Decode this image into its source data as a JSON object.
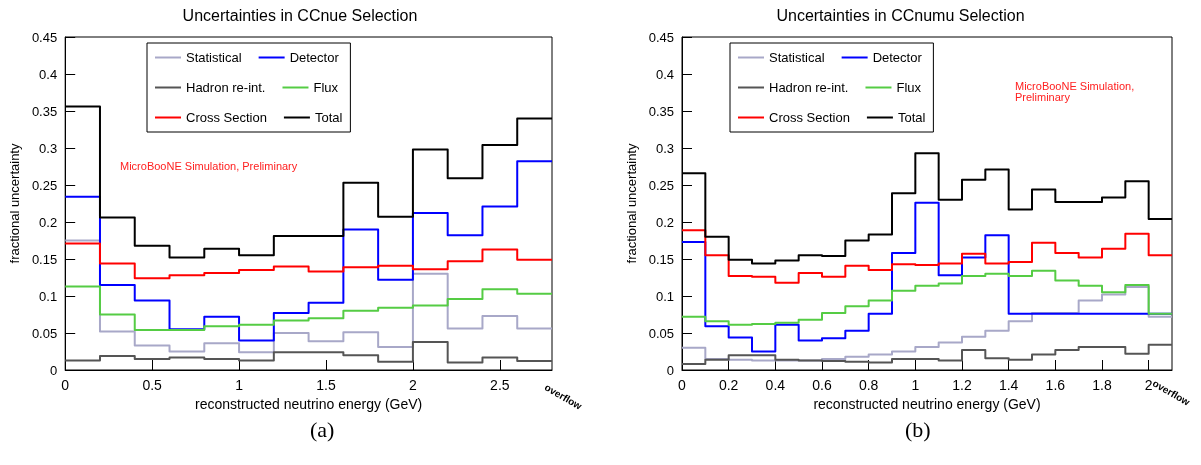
{
  "chart_data": [
    {
      "type": "histogram",
      "title": "Uncertainties in CCnue Selection",
      "xlabel": "reconstructed neutrino energy (GeV)",
      "ylabel": "fractional uncertainty",
      "annotations": [
        "MicroBooNE Simulation, Preliminary",
        "overflow",
        "(a)"
      ],
      "bins": [
        0,
        0.2,
        0.4,
        0.6,
        0.8,
        1.0,
        1.2,
        1.4,
        1.6,
        1.8,
        2.0,
        2.2,
        2.4,
        2.6,
        2.8
      ],
      "series": [
        {
          "name": "Statistical",
          "color": "#a8a8c8",
          "values": [
            0.175,
            0.052,
            0.033,
            0.025,
            0.036,
            0.024,
            0.05,
            0.039,
            0.051,
            0.031,
            0.13,
            0.056,
            0.073,
            0.056
          ]
        },
        {
          "name": "Detector",
          "color": "#0000ff",
          "values": [
            0.234,
            0.115,
            0.094,
            0.055,
            0.072,
            0.04,
            0.077,
            0.091,
            0.19,
            0.122,
            0.212,
            0.182,
            0.221,
            0.282
          ]
        },
        {
          "name": "Hadron re-int.",
          "color": "#555555",
          "values": [
            0.013,
            0.019,
            0.015,
            0.017,
            0.015,
            0.013,
            0.024,
            0.024,
            0.02,
            0.011,
            0.038,
            0.01,
            0.017,
            0.012
          ]
        },
        {
          "name": "Flux",
          "color": "#55cc44",
          "values": [
            0.113,
            0.075,
            0.054,
            0.054,
            0.059,
            0.061,
            0.067,
            0.07,
            0.08,
            0.084,
            0.087,
            0.096,
            0.109,
            0.103
          ]
        },
        {
          "name": "Cross Section",
          "color": "#ff0000",
          "values": [
            0.171,
            0.144,
            0.124,
            0.128,
            0.131,
            0.135,
            0.14,
            0.133,
            0.139,
            0.141,
            0.136,
            0.147,
            0.163,
            0.149
          ]
        },
        {
          "name": "Total",
          "color": "#000000",
          "values": [
            0.356,
            0.206,
            0.168,
            0.152,
            0.164,
            0.155,
            0.181,
            0.181,
            0.253,
            0.207,
            0.298,
            0.259,
            0.304,
            0.34
          ]
        }
      ],
      "xlim": [
        0,
        2.8
      ],
      "xticks": [
        0,
        0.5,
        1,
        1.5,
        2,
        2.5
      ],
      "ylim": [
        0,
        0.45
      ],
      "yticks": [
        0,
        0.05,
        0.1,
        0.15,
        0.2,
        0.25,
        0.3,
        0.35,
        0.4,
        0.45
      ],
      "grid": false,
      "legend": "top"
    },
    {
      "type": "histogram",
      "title": "Uncertainties in CCnumu Selection",
      "xlabel": "reconstructed neutrino energy (GeV)",
      "ylabel": "fractional uncertainty",
      "annotations": [
        "MicroBooNE Simulation, Preliminary",
        "overflow",
        "(b)"
      ],
      "bins": [
        0,
        0.1,
        0.2,
        0.3,
        0.4,
        0.5,
        0.6,
        0.7,
        0.8,
        0.9,
        1.0,
        1.1,
        1.2,
        1.3,
        1.4,
        1.5,
        1.6,
        1.7,
        1.8,
        1.9,
        2.0,
        2.1
      ],
      "series": [
        {
          "name": "Statistical",
          "color": "#a8a8c8",
          "values": [
            0.03,
            0.015,
            0.014,
            0.013,
            0.013,
            0.013,
            0.015,
            0.018,
            0.021,
            0.025,
            0.031,
            0.037,
            0.045,
            0.053,
            0.066,
            0.077,
            0.077,
            0.094,
            0.102,
            0.112,
            0.072
          ]
        },
        {
          "name": "Detector",
          "color": "#0000ff",
          "values": [
            0.173,
            0.059,
            0.044,
            0.025,
            0.061,
            0.04,
            0.043,
            0.053,
            0.076,
            0.158,
            0.226,
            0.128,
            0.152,
            0.182,
            0.076,
            0.076,
            0.076,
            0.076,
            0.076,
            0.076,
            0.076
          ]
        },
        {
          "name": "Hadron re-int.",
          "color": "#555555",
          "values": [
            0.008,
            0.014,
            0.02,
            0.02,
            0.014,
            0.013,
            0.012,
            0.011,
            0.01,
            0.015,
            0.015,
            0.013,
            0.027,
            0.016,
            0.014,
            0.021,
            0.027,
            0.031,
            0.031,
            0.022,
            0.034
          ]
        },
        {
          "name": "Flux",
          "color": "#55cc44",
          "values": [
            0.072,
            0.066,
            0.061,
            0.062,
            0.064,
            0.068,
            0.077,
            0.086,
            0.094,
            0.107,
            0.114,
            0.117,
            0.127,
            0.13,
            0.127,
            0.134,
            0.121,
            0.114,
            0.105,
            0.115,
            0.076
          ]
        },
        {
          "name": "Cross Section",
          "color": "#ff0000",
          "values": [
            0.189,
            0.155,
            0.127,
            0.126,
            0.118,
            0.131,
            0.126,
            0.141,
            0.135,
            0.143,
            0.142,
            0.144,
            0.157,
            0.144,
            0.146,
            0.172,
            0.158,
            0.152,
            0.164,
            0.184,
            0.155
          ]
        },
        {
          "name": "Total",
          "color": "#000000",
          "values": [
            0.266,
            0.18,
            0.149,
            0.144,
            0.148,
            0.155,
            0.154,
            0.175,
            0.183,
            0.239,
            0.293,
            0.23,
            0.257,
            0.271,
            0.217,
            0.244,
            0.227,
            0.227,
            0.233,
            0.255,
            0.204
          ]
        }
      ],
      "xlim": [
        0,
        2.1
      ],
      "xticks": [
        0,
        0.2,
        0.4,
        0.6,
        0.8,
        1,
        1.2,
        1.4,
        1.6,
        1.8,
        2
      ],
      "ylim": [
        0,
        0.45
      ],
      "yticks": [
        0,
        0.05,
        0.1,
        0.15,
        0.2,
        0.25,
        0.3,
        0.35,
        0.4,
        0.45
      ],
      "grid": false,
      "legend": "top"
    }
  ]
}
